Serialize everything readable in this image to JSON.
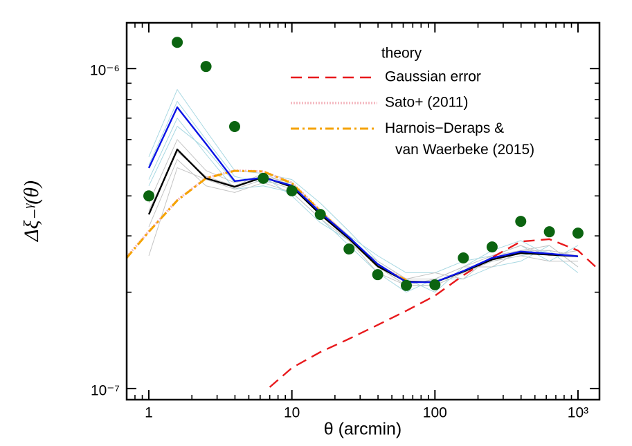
{
  "chart_data": {
    "type": "line",
    "xscale": "log",
    "yscale": "log",
    "xlabel": "θ (arcmin)",
    "ylabel": "Δξ₋ᵞ(θ)",
    "xlim": [
      0.7,
      1413
    ],
    "ylim": [
      9.23e-08,
      1.39e-06
    ],
    "xticks": [
      1,
      10,
      100,
      {
        "value": 1000,
        "label": "10³"
      }
    ],
    "yticks": [
      {
        "value": 1e-07,
        "label": "10⁻⁷"
      },
      {
        "value": 1e-06,
        "label": "10⁻⁶"
      }
    ],
    "xminorticks": [
      0.8,
      0.9,
      2,
      3,
      4,
      5,
      6,
      7,
      8,
      9,
      20,
      30,
      40,
      50,
      60,
      70,
      80,
      90,
      200,
      300,
      400,
      500,
      600,
      700,
      800,
      900
    ],
    "yminorticks": [
      2e-07,
      3e-07,
      4e-07,
      5e-07,
      6e-07,
      7e-07,
      8e-07,
      9e-07
    ],
    "legend": {
      "title": "theory",
      "loc": "upper right"
    },
    "x": [
      1,
      1.58,
      2.51,
      3.98,
      6.31,
      10,
      15.8,
      25.1,
      39.8,
      63.1,
      100,
      158,
      251,
      398,
      631,
      1000
    ],
    "series": [
      {
        "color": "#a8d8e2",
        "style": "thin",
        "values": [
          5.3e-07,
          8.6e-07,
          6.4e-07,
          4.8e-07,
          4.7e-07,
          4.5e-07,
          3.8e-07,
          3.1e-07,
          2.5e-07,
          2.2e-07,
          2e-07,
          2.4e-07,
          2.7e-07,
          2.9e-07,
          2.6e-07,
          2.7e-07
        ]
      },
      {
        "color": "#a8d8e2",
        "style": "thin",
        "values": [
          4.5e-07,
          7e-07,
          5.4e-07,
          4.2e-07,
          4.3e-07,
          4.1e-07,
          3.4e-07,
          2.8e-07,
          2.3e-07,
          2e-07,
          2.2e-07,
          2.2e-07,
          2.4e-07,
          2.5e-07,
          2.8e-07,
          2.4e-07
        ]
      },
      {
        "color": "#a8d8e2",
        "style": "thin",
        "values": [
          5e-07,
          7.9e-07,
          6e-07,
          4.6e-07,
          4.4e-07,
          4.4e-07,
          3.6e-07,
          3e-07,
          2.6e-07,
          2.3e-07,
          2.3e-07,
          2.5e-07,
          2.6e-07,
          2.8e-07,
          2.5e-07,
          2.8e-07
        ]
      },
      {
        "color": "#a8d8e2",
        "style": "thin",
        "values": [
          4.3e-07,
          6.6e-07,
          5.6e-07,
          4.4e-07,
          4.6e-07,
          4e-07,
          3.3e-07,
          2.9e-07,
          2.4e-07,
          2.1e-07,
          2.1e-07,
          2.3e-07,
          2.5e-07,
          2.6e-07,
          2.7e-07,
          2.3e-07
        ]
      },
      {
        "color": "#c4c4c4",
        "style": "thin",
        "values": [
          3.8e-07,
          6e-07,
          4.8e-07,
          4.4e-07,
          4.6e-07,
          4.4e-07,
          3.6e-07,
          3e-07,
          2.4e-07,
          2.2e-07,
          2.2e-07,
          2.4e-07,
          2.6e-07,
          2.7e-07,
          2.7e-07,
          2.6e-07
        ]
      },
      {
        "color": "#c4c4c4",
        "style": "thin",
        "values": [
          3.2e-07,
          5.2e-07,
          4.3e-07,
          4.1e-07,
          4.4e-07,
          4.1e-07,
          3.4e-07,
          2.9e-07,
          2.3e-07,
          2.1e-07,
          2.1e-07,
          2.3e-07,
          2.5e-07,
          2.6e-07,
          2.5e-07,
          2.5e-07
        ]
      },
      {
        "color": "#c4c4c4",
        "style": "thin",
        "values": [
          3.6e-07,
          5.5e-07,
          4.6e-07,
          4.3e-07,
          4.7e-07,
          4.3e-07,
          3.5e-07,
          2.9e-07,
          2.5e-07,
          2.2e-07,
          2.3e-07,
          2.2e-07,
          2.6e-07,
          2.8e-07,
          2.6e-07,
          2.7e-07
        ]
      },
      {
        "color": "#c4c4c4",
        "style": "thin",
        "values": [
          2.6e-07,
          4.9e-07,
          4.5e-07,
          4.2e-07,
          4.5e-07,
          4.2e-07,
          3.6e-07,
          3e-07,
          2.4e-07,
          2.1e-07,
          2.2e-07,
          2.4e-07,
          2.4e-07,
          2.7e-07,
          2.8e-07,
          2.4e-07
        ]
      },
      {
        "name": "Gaussian error",
        "color": "#e8191c",
        "style": "dashed",
        "x": [
          7,
          10,
          15.8,
          25.1,
          39.8,
          63.1,
          100,
          158,
          251,
          398,
          631,
          1000,
          1400
        ],
        "values": [
          1.01e-07,
          1.16e-07,
          1.3e-07,
          1.43e-07,
          1.58e-07,
          1.75e-07,
          1.95e-07,
          2.26e-07,
          2.57e-07,
          2.88e-07,
          2.93e-07,
          2.7e-07,
          2.35e-07
        ]
      },
      {
        "name": "Sato+ (2011)",
        "color": "#f4b8c0",
        "style": "dotted",
        "x": [
          0.7,
          1,
          1.58,
          2.51,
          3.98,
          6.31,
          10,
          15.8,
          25.1,
          39.8,
          63.1
        ],
        "values": [
          2.58e-07,
          3.1e-07,
          3.88e-07,
          4.55e-07,
          4.8e-07,
          4.77e-07,
          4.4e-07,
          3.6e-07,
          2.95e-07,
          2.42e-07,
          2.19e-07
        ]
      },
      {
        "name": "Harnois−Deraps &\nvan Waerbeke (2015)",
        "color": "#f5a300",
        "style": "dashdot",
        "x": [
          0.7,
          1,
          1.58,
          2.51,
          3.98,
          6.31,
          10,
          15.8,
          25.1,
          39.8,
          63.1
        ],
        "values": [
          2.56e-07,
          3.09e-07,
          3.87e-07,
          4.54e-07,
          4.79e-07,
          4.77e-07,
          4.38e-07,
          3.59e-07,
          2.94e-07,
          2.41e-07,
          2.18e-07
        ]
      },
      {
        "color": "#000000",
        "style": "line",
        "values": [
          3.5e-07,
          5.59e-07,
          4.54e-07,
          4.27e-07,
          4.58e-07,
          4.27e-07,
          3.5e-07,
          2.94e-07,
          2.41e-07,
          2.16e-07,
          2.15e-07,
          2.32e-07,
          2.53e-07,
          2.65e-07,
          2.62e-07,
          2.59e-07
        ]
      },
      {
        "color": "#0a14e6",
        "style": "line",
        "values": [
          4.89e-07,
          7.57e-07,
          5.82e-07,
          4.45e-07,
          4.56e-07,
          4.31e-07,
          3.55e-07,
          2.97e-07,
          2.45e-07,
          2.15e-07,
          2.15e-07,
          2.33e-07,
          2.56e-07,
          2.68e-07,
          2.64e-07,
          2.59e-07
        ]
      },
      {
        "color": "#0b6410",
        "style": "markers",
        "values": [
          4e-07,
          1.208e-06,
          1.015e-06,
          6.59e-07,
          4.54e-07,
          4.15e-07,
          3.5e-07,
          2.73e-07,
          2.27e-07,
          2.1e-07,
          2.11e-07,
          2.56e-07,
          2.77e-07,
          3.33e-07,
          3.09e-07,
          3.06e-07
        ]
      }
    ]
  }
}
